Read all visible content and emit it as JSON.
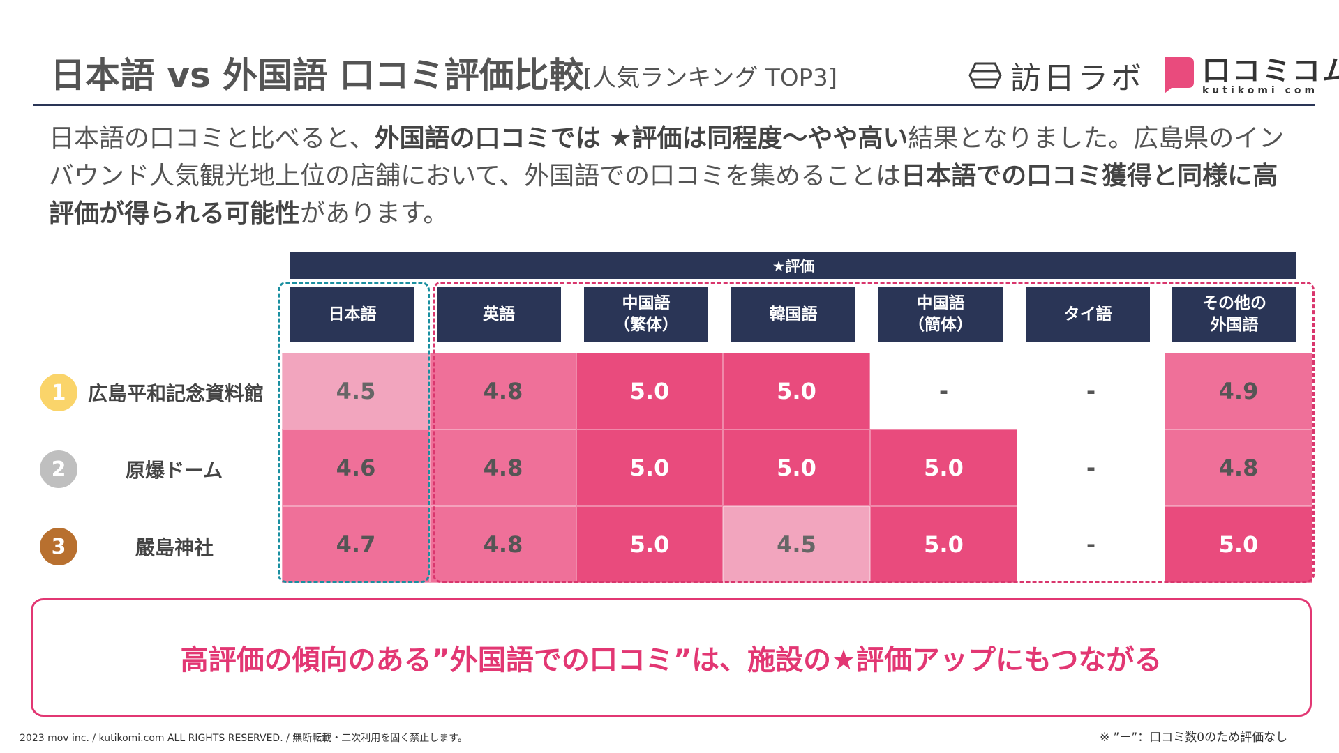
{
  "header": {
    "title": "日本語 vs 外国語 口コミ評価比較",
    "subtitle": "[人気ランキング TOP3]",
    "logo_houjin": "訪日ラボ",
    "logo_kutikomi": "口コミコム",
    "logo_kutikomi_sub": "kutikomi com"
  },
  "lead": {
    "p1": "日本語の口コミと比べると、",
    "b1": "外国語の口コミでは ★評価は同程度〜やや高い",
    "p2": "結果となりました。広島県のインバウンド人気観光地上位の店舗において、外国語での口コミを集めることは",
    "b2": "日本語での口コミ獲得と同様に高評価が得られる可能性",
    "p3": "があります。"
  },
  "table": {
    "band_label": "★評価",
    "columns": [
      "日本語",
      "英語",
      "中国語\n（繁体）",
      "韓国語",
      "中国語\n（簡体）",
      "タイ語",
      "その他の\n外国語"
    ],
    "rows": [
      {
        "rank": "1",
        "rank_color": "#fad46a",
        "place": "広島平和記念資料館",
        "values": [
          "4.5",
          "4.8",
          "5.0",
          "5.0",
          "-",
          "-",
          "4.9"
        ]
      },
      {
        "rank": "2",
        "rank_color": "#bfbfbf",
        "place": "原爆ドーム",
        "values": [
          "4.6",
          "4.8",
          "5.0",
          "5.0",
          "5.0",
          "-",
          "4.8"
        ]
      },
      {
        "rank": "3",
        "rank_color": "#b8702f",
        "place": "嚴島神社",
        "values": [
          "4.7",
          "4.8",
          "5.0",
          "4.5",
          "5.0",
          "-",
          "5.0"
        ]
      }
    ]
  },
  "callout": {
    "text": "高評価の傾向のある”外国語での口コミ”は、施設の★評価アップにもつながる"
  },
  "footer": {
    "copyright": "2023 mov inc. / kutikomi.com ALL RIGHTS RESERVED. / 無断転載・二次利用を固く禁止します。",
    "note": "※ ”ー”：口コミ数0のため評価なし"
  }
}
